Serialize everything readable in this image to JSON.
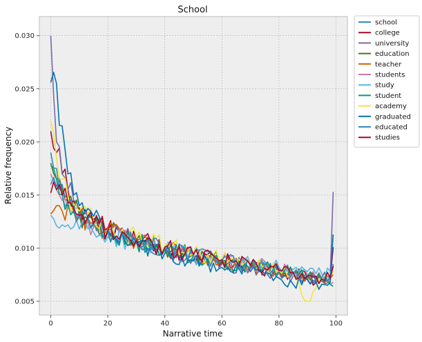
{
  "chart_data": {
    "type": "line",
    "title": "School",
    "xlabel": "Narrative time",
    "ylabel": "Relative frequency",
    "xlim": [
      -4,
      104
    ],
    "ylim": [
      0.0037,
      0.0318
    ],
    "x_ticks": [
      0,
      20,
      40,
      60,
      80,
      100
    ],
    "x_tick_labels": [
      "0",
      "20",
      "40",
      "60",
      "80",
      "100"
    ],
    "y_ticks": [
      0.005,
      0.01,
      0.015,
      0.02,
      0.025,
      0.03
    ],
    "y_tick_labels": [
      "0.005",
      "0.010",
      "0.015",
      "0.020",
      "0.025",
      "0.030"
    ],
    "grid": true,
    "background": "#eeeeee",
    "legend_position": "outside-top-right",
    "x_sampled": [
      0,
      2,
      4,
      6,
      8,
      10,
      15,
      20,
      30,
      40,
      50,
      60,
      70,
      80,
      85,
      90,
      95,
      98,
      99
    ],
    "series": [
      {
        "name": "school",
        "color": "#348abd",
        "values": [
          0.019,
          0.0175,
          0.016,
          0.015,
          0.0142,
          0.0135,
          0.0125,
          0.0118,
          0.0108,
          0.01,
          0.0092,
          0.0088,
          0.0083,
          0.0078,
          0.0076,
          0.0073,
          0.0071,
          0.007,
          0.0085
        ]
      },
      {
        "name": "college",
        "color": "#a60628",
        "values": [
          0.021,
          0.019,
          0.017,
          0.0155,
          0.0145,
          0.0138,
          0.0127,
          0.0119,
          0.0108,
          0.01,
          0.0093,
          0.0087,
          0.0082,
          0.0078,
          0.0075,
          0.0072,
          0.0069,
          0.0072,
          0.0101
        ]
      },
      {
        "name": "university",
        "color": "#7a68a6",
        "values": [
          0.03,
          0.02,
          0.017,
          0.0155,
          0.0145,
          0.0135,
          0.0125,
          0.0117,
          0.0106,
          0.0098,
          0.009,
          0.0085,
          0.0081,
          0.0077,
          0.0074,
          0.0071,
          0.0069,
          0.0075,
          0.0153
        ]
      },
      {
        "name": "education",
        "color": "#467821",
        "values": [
          0.018,
          0.0165,
          0.0155,
          0.0145,
          0.0138,
          0.0132,
          0.0123,
          0.0117,
          0.0107,
          0.01,
          0.0094,
          0.0089,
          0.0084,
          0.0079,
          0.0076,
          0.0073,
          0.0071,
          0.0072,
          0.0083
        ]
      },
      {
        "name": "teacher",
        "color": "#d55e00",
        "values": [
          0.0132,
          0.014,
          0.0135,
          0.014,
          0.0135,
          0.013,
          0.0124,
          0.0116,
          0.0107,
          0.01,
          0.0093,
          0.0088,
          0.0083,
          0.0079,
          0.0076,
          0.0073,
          0.0071,
          0.0072,
          0.0075
        ]
      },
      {
        "name": "students",
        "color": "#cc79a7",
        "values": [
          0.017,
          0.0155,
          0.0145,
          0.0138,
          0.0133,
          0.0128,
          0.012,
          0.0114,
          0.0106,
          0.01,
          0.0094,
          0.009,
          0.0085,
          0.0081,
          0.0078,
          0.0075,
          0.0072,
          0.0066,
          0.0068
        ]
      },
      {
        "name": "study",
        "color": "#56b4e9",
        "values": [
          0.0131,
          0.0121,
          0.0122,
          0.0122,
          0.012,
          0.0118,
          0.0115,
          0.0111,
          0.0105,
          0.0098,
          0.0092,
          0.0089,
          0.0085,
          0.0082,
          0.008,
          0.0078,
          0.0076,
          0.0078,
          0.0082
        ]
      },
      {
        "name": "student",
        "color": "#009e73",
        "values": [
          0.0178,
          0.0165,
          0.015,
          0.0142,
          0.0135,
          0.013,
          0.0122,
          0.0116,
          0.0106,
          0.0099,
          0.0093,
          0.0088,
          0.0083,
          0.0079,
          0.0076,
          0.0073,
          0.007,
          0.0066,
          0.0064
        ]
      },
      {
        "name": "academy",
        "color": "#f0e442",
        "values": [
          0.022,
          0.0185,
          0.0165,
          0.015,
          0.0142,
          0.0135,
          0.0125,
          0.0118,
          0.011,
          0.0103,
          0.0095,
          0.009,
          0.0084,
          0.0079,
          0.0075,
          0.005,
          0.007,
          0.0073,
          0.0078
        ]
      },
      {
        "name": "graduated",
        "color": "#0072b2",
        "values": [
          0.0256,
          0.0255,
          0.0215,
          0.017,
          0.015,
          0.014,
          0.013,
          0.0116,
          0.0105,
          0.0095,
          0.0088,
          0.0082,
          0.0078,
          0.0072,
          0.0066,
          0.007,
          0.0066,
          0.0068,
          0.0113
        ]
      },
      {
        "name": "educated",
        "color": "#348abd",
        "values": [
          0.016,
          0.0158,
          0.015,
          0.0143,
          0.0137,
          0.0131,
          0.0122,
          0.0116,
          0.0106,
          0.01,
          0.0094,
          0.0089,
          0.0084,
          0.008,
          0.0077,
          0.0074,
          0.0072,
          0.0074,
          0.0083
        ]
      },
      {
        "name": "studies",
        "color": "#a60628",
        "values": [
          0.0152,
          0.0155,
          0.015,
          0.0143,
          0.0137,
          0.0131,
          0.0123,
          0.0117,
          0.0107,
          0.0101,
          0.0094,
          0.0089,
          0.0084,
          0.0079,
          0.0077,
          0.0074,
          0.0071,
          0.0072,
          0.0083
        ]
      }
    ]
  }
}
